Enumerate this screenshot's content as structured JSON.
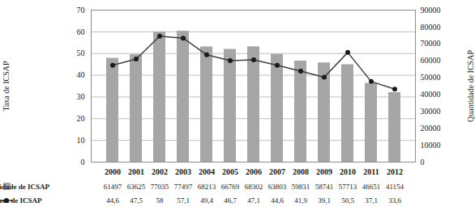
{
  "chart_data": {
    "type": "bar",
    "categories": [
      "2000",
      "2001",
      "2002",
      "2003",
      "2004",
      "2005",
      "2006",
      "2007",
      "2008",
      "2009",
      "2010",
      "2011",
      "2012"
    ],
    "series": [
      {
        "name": "Quantidade de ICSAP",
        "type": "bar",
        "axis": "y2",
        "color": "#a6a6a6",
        "values": [
          61497,
          63625,
          77035,
          77497,
          68213,
          66769,
          68302,
          63803,
          59831,
          58741,
          57713,
          46651,
          41154
        ]
      },
      {
        "name": "Taxa de ICSAP",
        "type": "line",
        "color": "#404040",
        "marker": "circle",
        "values": [
          44.6,
          47.5,
          58,
          57.1,
          49.4,
          46.7,
          47.1,
          44.6,
          41.9,
          39.1,
          50.5,
          37.1,
          33.6
        ],
        "value_labels": [
          "44,6",
          "47,5",
          "58",
          "57,1",
          "49,4",
          "46,7",
          "47,1",
          "44,6",
          "41,9",
          "39,1",
          "50,5",
          "37,1",
          "33,6"
        ]
      }
    ],
    "ylabel": "Taxa de ICSAP",
    "y2label": "Quantidade de ICSAP",
    "ylim": [
      0,
      70
    ],
    "yticks": [
      0,
      10,
      20,
      30,
      40,
      50,
      60,
      70
    ],
    "y2lim": [
      0,
      90000
    ],
    "y2ticks": [
      0,
      10000,
      20000,
      30000,
      40000,
      50000,
      60000,
      70000,
      80000,
      90000
    ],
    "grid": true,
    "data_labels": true,
    "legend": "bottom"
  }
}
